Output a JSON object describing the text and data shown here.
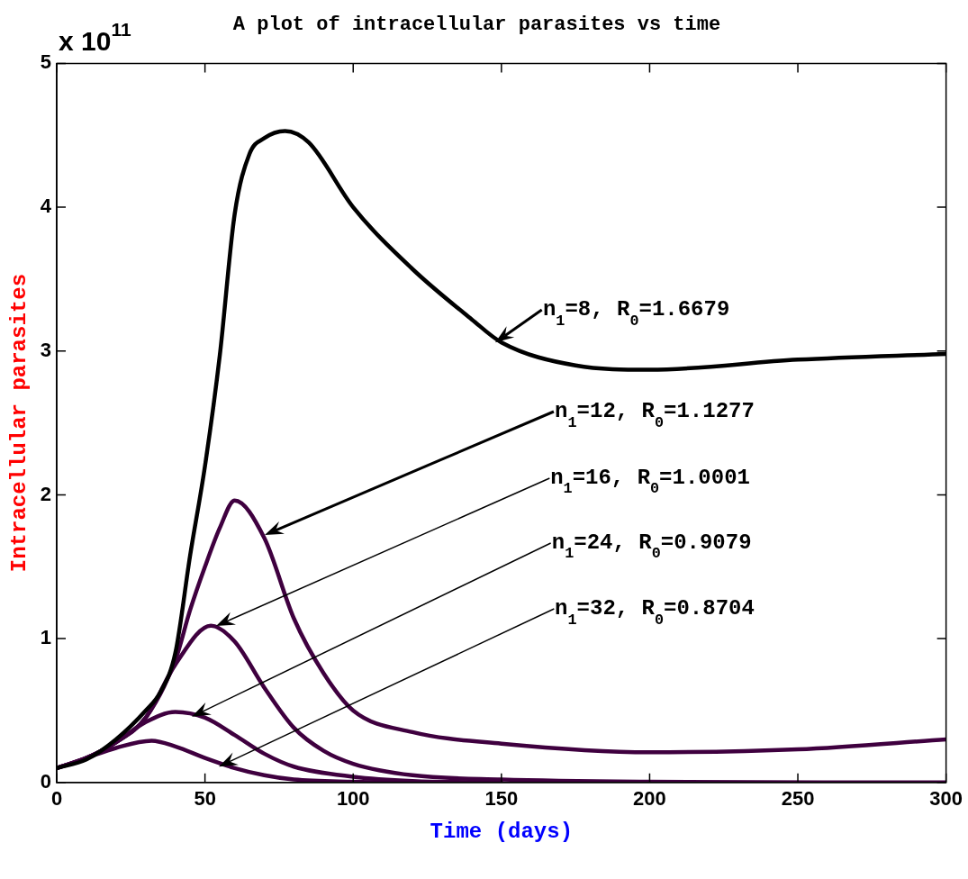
{
  "chart_data": {
    "type": "line",
    "title": "A plot of intracellular parasites vs time",
    "xlabel": "Time (days)",
    "ylabel": "Intracellular parasites",
    "xlim": [
      0,
      300
    ],
    "xticks": [
      0,
      50,
      100,
      150,
      200,
      250,
      300
    ],
    "ylim": [
      0,
      5
    ],
    "yticks": [
      0,
      1,
      2,
      3,
      4,
      5
    ],
    "marker": "none",
    "line_style": "solid",
    "series": [
      {
        "color": "#000000",
        "x": [
          0,
          10,
          20,
          30,
          35,
          40,
          45,
          50,
          55,
          60,
          65,
          70,
          77,
          85,
          100,
          120,
          140,
          150,
          175,
          200,
          250,
          300
        ],
        "values": [
          0.1,
          0.16,
          0.3,
          0.5,
          0.63,
          0.9,
          1.58,
          2.2,
          2.97,
          3.95,
          4.37,
          4.48,
          4.53,
          4.45,
          4.0,
          3.57,
          3.22,
          3.06,
          2.9,
          2.87,
          2.94,
          2.98
        ]
      },
      {
        "color": "#3f003f",
        "x": [
          0,
          10,
          20,
          30,
          40,
          45,
          50,
          55,
          60,
          70,
          80,
          90,
          100,
          120,
          150,
          200,
          250,
          300
        ],
        "values": [
          0.1,
          0.17,
          0.28,
          0.45,
          0.85,
          1.2,
          1.5,
          1.77,
          1.96,
          1.7,
          1.14,
          0.76,
          0.5,
          0.35,
          0.27,
          0.21,
          0.23,
          0.3
        ]
      },
      {
        "color": "#3f003f",
        "x": [
          0,
          10,
          20,
          30,
          40,
          52,
          60,
          70,
          80,
          90,
          100,
          120,
          150,
          200,
          300
        ],
        "values": [
          0.1,
          0.17,
          0.28,
          0.45,
          0.82,
          1.09,
          0.98,
          0.66,
          0.38,
          0.22,
          0.13,
          0.05,
          0.02,
          0.005,
          0
        ]
      },
      {
        "color": "#3f003f",
        "x": [
          0,
          10,
          20,
          30,
          40,
          50,
          60,
          70,
          80,
          100,
          120,
          150
        ],
        "values": [
          0.1,
          0.17,
          0.28,
          0.42,
          0.49,
          0.45,
          0.33,
          0.2,
          0.11,
          0.04,
          0.01,
          0
        ]
      },
      {
        "color": "#3f003f",
        "x": [
          0,
          10,
          20,
          32,
          40,
          50,
          60,
          70,
          80,
          100,
          120
        ],
        "values": [
          0.1,
          0.17,
          0.24,
          0.29,
          0.25,
          0.17,
          0.1,
          0.05,
          0.02,
          0.005,
          0
        ]
      }
    ],
    "annotations": [
      "x 10$^{11}$",
      {
        "text": "n$_{1}$=8, R$_{0}$=1.6679",
        "x": 148,
        "y": 3.06
      },
      "n$_{1}$=12, R$_{0}$=1.1277",
      "n$_{1}$=16, R$_{0}$=1.0001",
      "n$_{1}$=24, R$_{0}$=0.9079",
      "n$_{1}$=32, R$_{0}$=0.8704"
    ]
  }
}
